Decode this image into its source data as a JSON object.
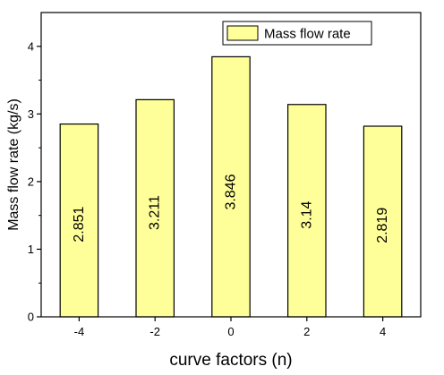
{
  "chart_data": {
    "type": "bar",
    "categories": [
      "-4",
      "-2",
      "0",
      "2",
      "4"
    ],
    "series": [
      {
        "name": "Mass flow rate",
        "values": [
          2.851,
          3.211,
          3.846,
          3.14,
          2.819
        ],
        "labels": [
          "2.851",
          "3.211",
          "3.846",
          "3.14",
          "2.819"
        ],
        "color": "#ffff99"
      }
    ],
    "xlabel": "curve factors (n)",
    "ylabel": "Mass flow rate (kg/s)",
    "ylim": [
      0,
      4.5
    ],
    "yticks": [
      "0",
      "1",
      "2",
      "3",
      "4"
    ],
    "legend_position": "top-right",
    "grid": false,
    "bar_edge_color": "#000000"
  }
}
